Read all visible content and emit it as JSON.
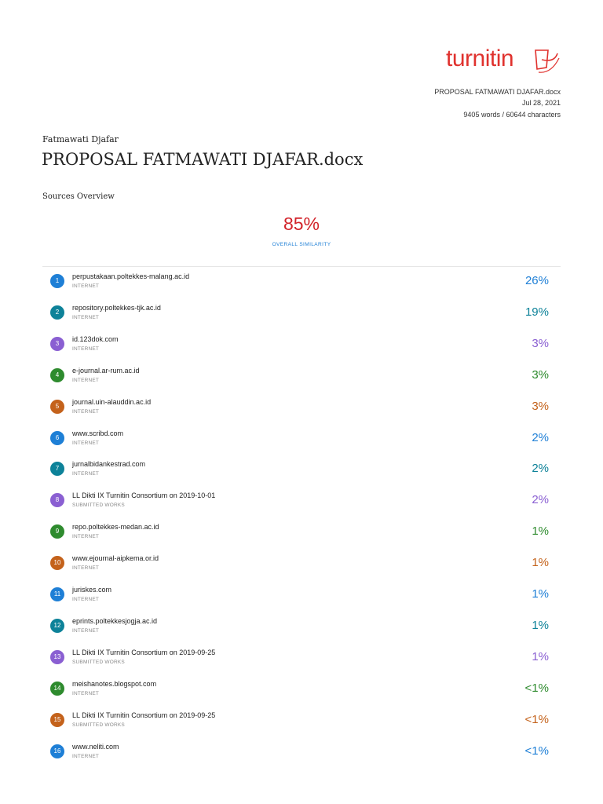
{
  "header": {
    "logo": "turnitin",
    "file": "PROPOSAL FATMAWATI DJAFAR.docx",
    "date": "Jul 28, 2021",
    "stats": "9405 words / 60644 characters"
  },
  "author": "Fatmawati Djafar",
  "title": "PROPOSAL FATMAWATI DJAFAR.docx",
  "section": "Sources Overview",
  "similarity": {
    "value": "85%",
    "label": "OVERALL SIMILARITY"
  },
  "sources": [
    {
      "number": "1",
      "name": "perpustakaan.poltekkes-malang.ac.id",
      "type": "INTERNET",
      "percent": "26%",
      "color": "#1e7fd6"
    },
    {
      "number": "2",
      "name": "repository.poltekkes-tjk.ac.id",
      "type": "INTERNET",
      "percent": "19%",
      "color": "#0d8299"
    },
    {
      "number": "3",
      "name": "id.123dok.com",
      "type": "INTERNET",
      "percent": "3%",
      "color": "#8a5fd2"
    },
    {
      "number": "4",
      "name": "e-journal.ar-rum.ac.id",
      "type": "INTERNET",
      "percent": "3%",
      "color": "#2e8b2e"
    },
    {
      "number": "5",
      "name": "journal.uin-alauddin.ac.id",
      "type": "INTERNET",
      "percent": "3%",
      "color": "#c4621b"
    },
    {
      "number": "6",
      "name": "www.scribd.com",
      "type": "INTERNET",
      "percent": "2%",
      "color": "#1e7fd6"
    },
    {
      "number": "7",
      "name": "jurnalbidankestrad.com",
      "type": "INTERNET",
      "percent": "2%",
      "color": "#0d8299"
    },
    {
      "number": "8",
      "name": "LL Dikti IX Turnitin Consortium on 2019-10-01",
      "type": "SUBMITTED WORKS",
      "percent": "2%",
      "color": "#8a5fd2"
    },
    {
      "number": "9",
      "name": "repo.poltekkes-medan.ac.id",
      "type": "INTERNET",
      "percent": "1%",
      "color": "#2e8b2e"
    },
    {
      "number": "10",
      "name": "www.ejournal-aipkema.or.id",
      "type": "INTERNET",
      "percent": "1%",
      "color": "#c4621b"
    },
    {
      "number": "11",
      "name": "juriskes.com",
      "type": "INTERNET",
      "percent": "1%",
      "color": "#1e7fd6"
    },
    {
      "number": "12",
      "name": "eprints.poltekkesjogja.ac.id",
      "type": "INTERNET",
      "percent": "1%",
      "color": "#0d8299"
    },
    {
      "number": "13",
      "name": "LL Dikti IX Turnitin Consortium on 2019-09-25",
      "type": "SUBMITTED WORKS",
      "percent": "1%",
      "color": "#8a5fd2"
    },
    {
      "number": "14",
      "name": "meishanotes.blogspot.com",
      "type": "INTERNET",
      "percent": "<1%",
      "color": "#2e8b2e"
    },
    {
      "number": "15",
      "name": "LL Dikti IX Turnitin Consortium on 2019-09-25",
      "type": "SUBMITTED WORKS",
      "percent": "<1%",
      "color": "#c4621b"
    },
    {
      "number": "16",
      "name": "www.neliti.com",
      "type": "INTERNET",
      "percent": "<1%",
      "color": "#1e7fd6"
    }
  ]
}
